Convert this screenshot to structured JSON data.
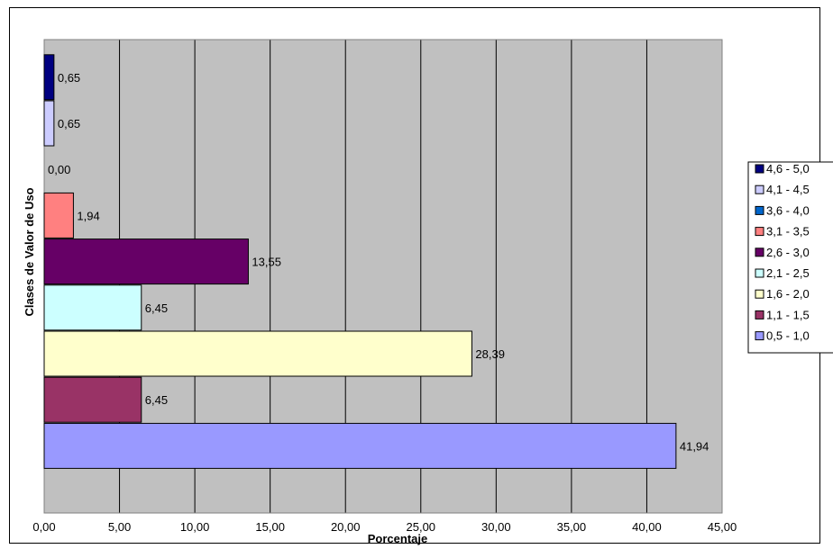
{
  "chart_data": {
    "type": "bar",
    "orientation": "horizontal",
    "title": "",
    "xlabel": "Porcentaje",
    "ylabel": "Clases de Valor de Uso",
    "xlim": [
      0,
      45
    ],
    "xticks": [
      "0,00",
      "5,00",
      "10,00",
      "15,00",
      "20,00",
      "25,00",
      "30,00",
      "35,00",
      "40,00",
      "45,00"
    ],
    "grid": "vertical",
    "legend_position": "right",
    "plot_background": "#c0c0c0",
    "series": [
      {
        "name": "0,5 - 1,0",
        "value": 41.94,
        "label": "41,94",
        "color": "#9999ff"
      },
      {
        "name": "1,1 - 1,5",
        "value": 6.45,
        "label": "6,45",
        "color": "#993366"
      },
      {
        "name": "1,6 - 2,0",
        "value": 28.39,
        "label": "28,39",
        "color": "#ffffcc"
      },
      {
        "name": "2,1 - 2,5",
        "value": 6.45,
        "label": "6,45",
        "color": "#ccffff"
      },
      {
        "name": "2,6 - 3,0",
        "value": 13.55,
        "label": "13,55",
        "color": "#660066"
      },
      {
        "name": "3,1 - 3,5",
        "value": 1.94,
        "label": "1,94",
        "color": "#ff8080"
      },
      {
        "name": "3,6 - 4,0",
        "value": 0.0,
        "label": "0,00",
        "color": "#0066cc"
      },
      {
        "name": "4,1 - 4,5",
        "value": 0.65,
        "label": "0,65",
        "color": "#ccccff"
      },
      {
        "name": "4,6 - 5,0",
        "value": 0.65,
        "label": "0,65",
        "color": "#000080"
      }
    ]
  }
}
